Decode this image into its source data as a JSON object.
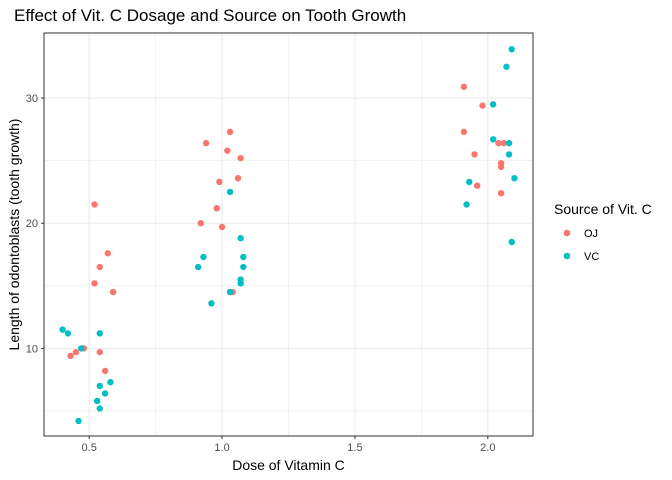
{
  "chart_data": {
    "type": "scatter",
    "title": "Effect of Vit. C Dosage and Source on Tooth Growth",
    "xlabel": "Dose of Vitamin C",
    "ylabel": "Length of odontoblasts (tooth growth)",
    "xlim": [
      0.33,
      2.17
    ],
    "ylim": [
      3.0,
      35.2
    ],
    "x_ticks": [
      0.5,
      1.0,
      1.5,
      2.0
    ],
    "x_tick_labels": [
      "0.5",
      "1.0",
      "1.5",
      "2.0"
    ],
    "y_ticks": [
      10,
      20,
      30
    ],
    "y_tick_labels": [
      "10",
      "20",
      "30"
    ],
    "grid": true,
    "legend": {
      "title": "Source of Vit. C",
      "placement": "right"
    },
    "series": [
      {
        "name": "OJ",
        "color": "#F8766D",
        "points": [
          [
            0.52,
            21.5
          ],
          [
            0.57,
            17.6
          ],
          [
            0.54,
            16.5
          ],
          [
            0.52,
            15.2
          ],
          [
            0.59,
            14.5
          ],
          [
            0.48,
            10.0
          ],
          [
            0.45,
            9.7
          ],
          [
            0.43,
            9.4
          ],
          [
            0.54,
            9.7
          ],
          [
            0.56,
            8.2
          ],
          [
            1.03,
            27.3
          ],
          [
            0.94,
            26.4
          ],
          [
            1.02,
            25.8
          ],
          [
            1.07,
            25.2
          ],
          [
            1.06,
            23.6
          ],
          [
            0.99,
            23.3
          ],
          [
            0.98,
            21.2
          ],
          [
            0.92,
            20.0
          ],
          [
            1.0,
            19.7
          ],
          [
            1.04,
            14.5
          ],
          [
            1.91,
            30.9
          ],
          [
            1.98,
            29.4
          ],
          [
            1.91,
            27.3
          ],
          [
            2.04,
            26.4
          ],
          [
            2.06,
            26.4
          ],
          [
            1.95,
            25.5
          ],
          [
            2.05,
            24.8
          ],
          [
            2.05,
            24.5
          ],
          [
            1.96,
            23.0
          ],
          [
            2.05,
            22.4
          ]
        ]
      },
      {
        "name": "VC",
        "color": "#00BFC4",
        "points": [
          [
            0.4,
            11.5
          ],
          [
            0.42,
            11.2
          ],
          [
            0.54,
            11.2
          ],
          [
            0.47,
            10.0
          ],
          [
            0.58,
            7.3
          ],
          [
            0.54,
            7.0
          ],
          [
            0.56,
            6.4
          ],
          [
            0.53,
            5.8
          ],
          [
            0.54,
            5.2
          ],
          [
            0.46,
            4.2
          ],
          [
            1.03,
            22.5
          ],
          [
            1.07,
            18.8
          ],
          [
            1.08,
            17.3
          ],
          [
            0.93,
            17.3
          ],
          [
            0.91,
            16.5
          ],
          [
            1.08,
            16.5
          ],
          [
            1.07,
            15.5
          ],
          [
            1.07,
            15.2
          ],
          [
            1.03,
            14.5
          ],
          [
            0.96,
            13.6
          ],
          [
            2.09,
            33.9
          ],
          [
            2.07,
            32.5
          ],
          [
            2.02,
            29.5
          ],
          [
            2.02,
            26.7
          ],
          [
            2.08,
            26.4
          ],
          [
            2.08,
            25.5
          ],
          [
            2.1,
            23.6
          ],
          [
            1.93,
            23.3
          ],
          [
            1.92,
            21.5
          ],
          [
            2.09,
            18.5
          ]
        ]
      }
    ]
  }
}
